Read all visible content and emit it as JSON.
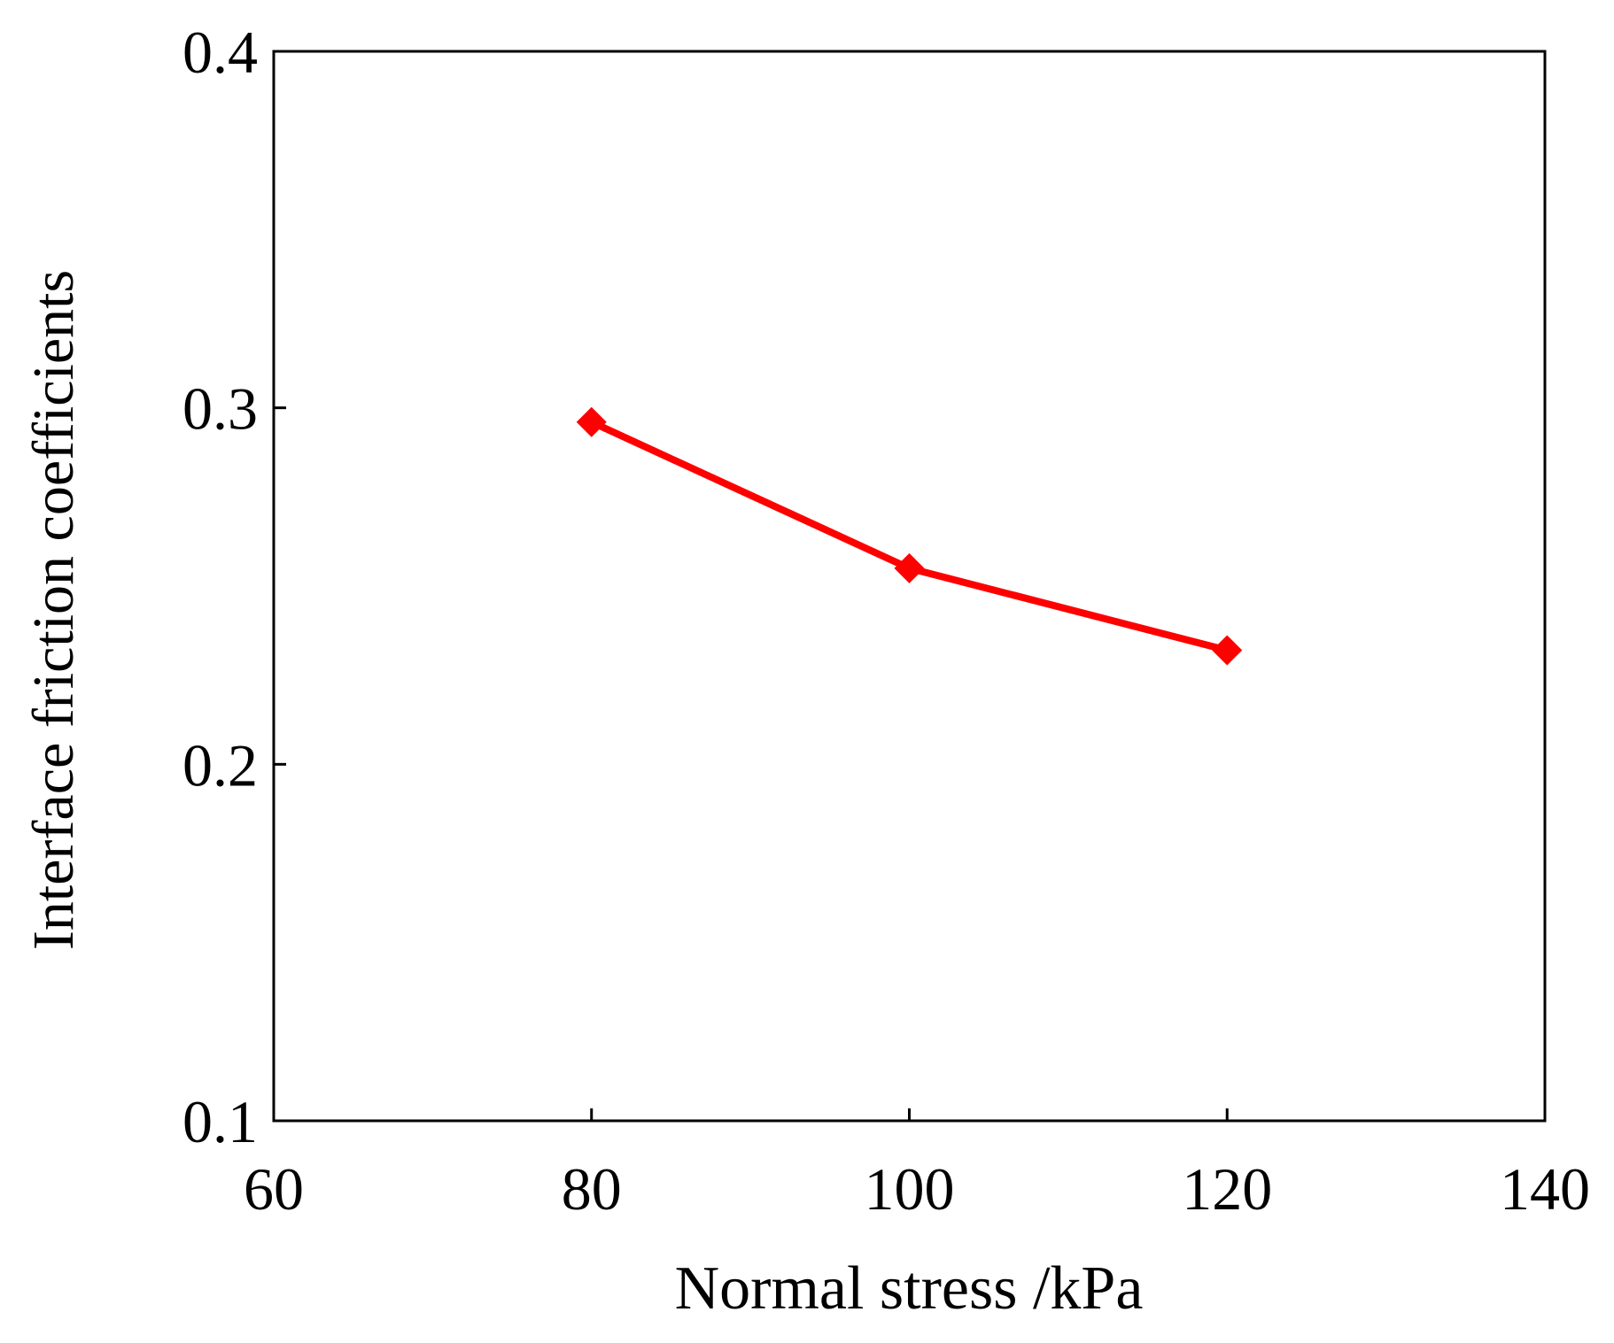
{
  "chart_data": {
    "type": "line",
    "x_label": "Normal stress /kPa",
    "y_label": "Interface friction coefficients",
    "x": [
      80,
      100,
      120
    ],
    "values": [
      0.296,
      0.255,
      0.232
    ],
    "color": "#ff0000",
    "marker": "diamond",
    "xlim": [
      60,
      140
    ],
    "xticks": [
      60,
      80,
      100,
      120,
      140
    ],
    "ylim": [
      0.1,
      0.4
    ],
    "yticks": [
      0.1,
      0.2,
      0.3,
      0.4
    ],
    "grid": false
  }
}
